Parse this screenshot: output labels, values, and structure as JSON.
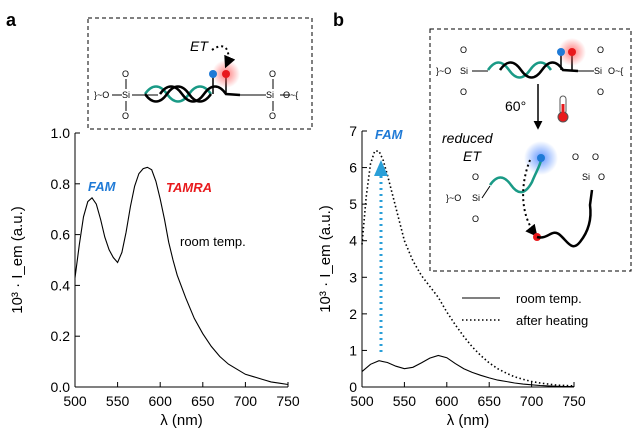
{
  "colors": {
    "fam": "#1f7ad6",
    "tamra": "#e8191c",
    "arrow": "#2a9fd8",
    "strand_teal": "#1a9a86",
    "axis": "#000000"
  },
  "icons": [
    "thermometer-icon",
    "fluorophore-dot-fam",
    "fluorophore-dot-tamra",
    "silica-surface-icon"
  ],
  "chart_data": [
    {
      "panel": "a",
      "type": "line",
      "xlabel": "λ (nm)",
      "ylabel": "10³ · I_em (a.u.)",
      "xlim": [
        500,
        750
      ],
      "ylim": [
        0,
        1.0
      ],
      "xticks": [
        "500",
        "550",
        "600",
        "650",
        "700",
        "750"
      ],
      "yticks": [
        "0.0",
        "0.2",
        "0.4",
        "0.6",
        "0.8",
        "1.0"
      ],
      "grid": false,
      "series": [
        {
          "name": "room temp.",
          "style": "solid",
          "x": [
            500,
            505,
            510,
            515,
            520,
            525,
            530,
            535,
            540,
            545,
            550,
            555,
            560,
            565,
            570,
            575,
            580,
            585,
            590,
            595,
            600,
            605,
            610,
            615,
            620,
            630,
            640,
            650,
            660,
            670,
            680,
            690,
            700,
            710,
            720,
            730,
            740,
            750
          ],
          "y": [
            0.43,
            0.56,
            0.67,
            0.73,
            0.745,
            0.72,
            0.66,
            0.59,
            0.54,
            0.51,
            0.49,
            0.53,
            0.61,
            0.71,
            0.79,
            0.84,
            0.86,
            0.865,
            0.855,
            0.81,
            0.74,
            0.66,
            0.57,
            0.5,
            0.44,
            0.35,
            0.27,
            0.21,
            0.16,
            0.12,
            0.09,
            0.07,
            0.05,
            0.04,
            0.03,
            0.02,
            0.015,
            0.01
          ]
        }
      ],
      "annotations": {
        "fam": "FAM",
        "tamra": "TAMRA",
        "room_temp": "room temp."
      }
    },
    {
      "panel": "b",
      "type": "line",
      "xlabel": "λ (nm)",
      "ylabel": "10³ · I_em (a.u.)",
      "xlim": [
        500,
        750
      ],
      "ylim": [
        0,
        7
      ],
      "xticks": [
        "500",
        "550",
        "600",
        "650",
        "700",
        "750"
      ],
      "yticks": [
        "0",
        "1",
        "2",
        "3",
        "4",
        "5",
        "6",
        "7"
      ],
      "grid": false,
      "legend": "bottom-right",
      "series": [
        {
          "name": "room temp.",
          "style": "solid",
          "x": [
            500,
            510,
            520,
            530,
            540,
            550,
            560,
            570,
            580,
            590,
            600,
            610,
            620,
            630,
            640,
            650,
            660,
            670,
            680,
            690,
            700,
            710,
            720,
            730,
            740,
            750
          ],
          "y": [
            0.42,
            0.62,
            0.72,
            0.67,
            0.57,
            0.5,
            0.54,
            0.66,
            0.79,
            0.86,
            0.8,
            0.64,
            0.5,
            0.4,
            0.32,
            0.25,
            0.19,
            0.15,
            0.11,
            0.08,
            0.06,
            0.04,
            0.03,
            0.02,
            0.01,
            0.01
          ]
        },
        {
          "name": "after heating",
          "style": "dotted",
          "x": [
            500,
            505,
            510,
            515,
            520,
            525,
            530,
            540,
            550,
            560,
            570,
            580,
            590,
            600,
            610,
            620,
            630,
            640,
            650,
            660,
            670,
            680,
            690,
            700,
            710,
            720,
            730,
            740,
            750
          ],
          "y": [
            3.9,
            5.2,
            6.1,
            6.45,
            6.45,
            6.2,
            5.8,
            4.9,
            4.0,
            3.45,
            3.05,
            2.75,
            2.45,
            2.05,
            1.7,
            1.38,
            1.1,
            0.86,
            0.66,
            0.5,
            0.38,
            0.28,
            0.21,
            0.15,
            0.11,
            0.08,
            0.05,
            0.04,
            0.03
          ]
        }
      ],
      "annotations": {
        "fam": "FAM"
      }
    }
  ],
  "panels": {
    "a": {
      "label": "a",
      "inset_text": "ET"
    },
    "b": {
      "label": "b",
      "inset_temp": "60°",
      "inset_reduced": "reduced",
      "inset_et": "ET"
    }
  }
}
